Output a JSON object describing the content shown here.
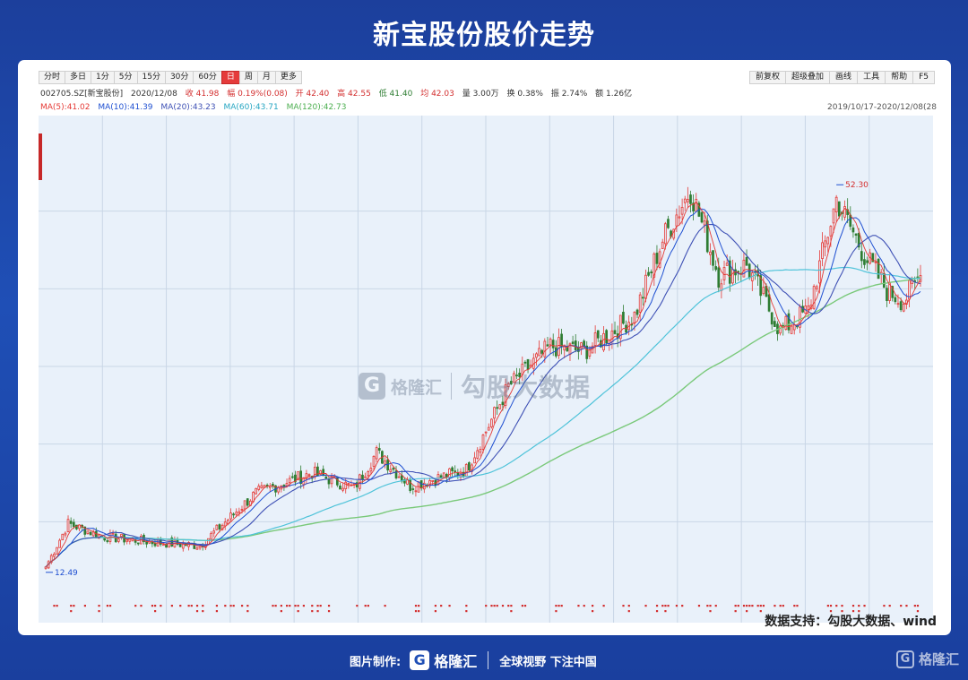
{
  "page": {
    "title": "新宝股份股价走势",
    "source_note": "数据支持：勾股大数据、wind"
  },
  "toolbar": {
    "timeframes": [
      "分时",
      "多日",
      "1分",
      "5分",
      "15分",
      "30分",
      "60分",
      "日",
      "周",
      "月",
      "更多"
    ],
    "active_timeframe": "日",
    "tools": [
      "前复权",
      "超级叠加",
      "画线",
      "工具",
      "帮助",
      "F5"
    ]
  },
  "quote": {
    "code_name": "002705.SZ[新宝股份]",
    "date": "2020/12/08",
    "close": "收 41.98",
    "change": "幅 0.19%(0.08)",
    "open": "开 42.40",
    "high": "高 42.55",
    "low": "低 41.40",
    "avg": "均 42.03",
    "volume": "量 3.00万",
    "turnover": "换 0.38%",
    "amplitude": "振 2.74%",
    "amount": "额 1.26亿"
  },
  "ma_legend": {
    "ma5": "MA(5):41.02",
    "ma10": "MA(10):41.39",
    "ma20": "MA(20):43.23",
    "ma60": "MA(60):43.71",
    "ma120": "MA(120):42.73",
    "range": "2019/10/17-2020/12/08(28"
  },
  "colors": {
    "up": "#e53935",
    "down": "#2e7d32",
    "ma5": "#e53935",
    "ma10": "#1e4fd1",
    "ma20": "#3f51b5",
    "ma60": "#4fc3d9",
    "ma120": "#7ac97a"
  },
  "watermark": {
    "logo": "G",
    "brand": "格隆汇",
    "text": "勾股大数据"
  },
  "footer": {
    "made_by": "图片制作:",
    "logo": "G",
    "brand": "格隆汇",
    "slogan": "全球视野 下注中国",
    "corner_brand": "格隆汇"
  },
  "chart_data": {
    "type": "candlestick",
    "title": "新宝股份股价走势",
    "date_range": [
      "2019/10/17",
      "2020/12/08"
    ],
    "annotations": [
      {
        "label": "12.49",
        "kind": "low"
      },
      {
        "label": "52.30",
        "kind": "high"
      }
    ],
    "ylim": [
      10,
      56
    ],
    "series": [
      {
        "name": "MA(5)",
        "last_value": 41.02
      },
      {
        "name": "MA(10)",
        "last_value": 41.39
      },
      {
        "name": "MA(20)",
        "last_value": 43.23
      },
      {
        "name": "MA(60)",
        "last_value": 43.71
      },
      {
        "name": "MA(120)",
        "last_value": 42.73
      }
    ],
    "close_trajectory": {
      "index": [
        0,
        8,
        20,
        40,
        55,
        75,
        95,
        110,
        118,
        130,
        150,
        165,
        180,
        192,
        210,
        220,
        230,
        240,
        250,
        262,
        272,
        282,
        292,
        300,
        306,
        312
      ],
      "close": [
        13.2,
        17.5,
        16.2,
        15.6,
        15.3,
        20.5,
        22.5,
        21.0,
        24.5,
        21.2,
        22.8,
        31.0,
        35.0,
        34.5,
        38.0,
        45.5,
        50.5,
        42.0,
        43.0,
        36.5,
        38.5,
        49.5,
        44.0,
        40.5,
        39.5,
        41.98
      ]
    }
  }
}
